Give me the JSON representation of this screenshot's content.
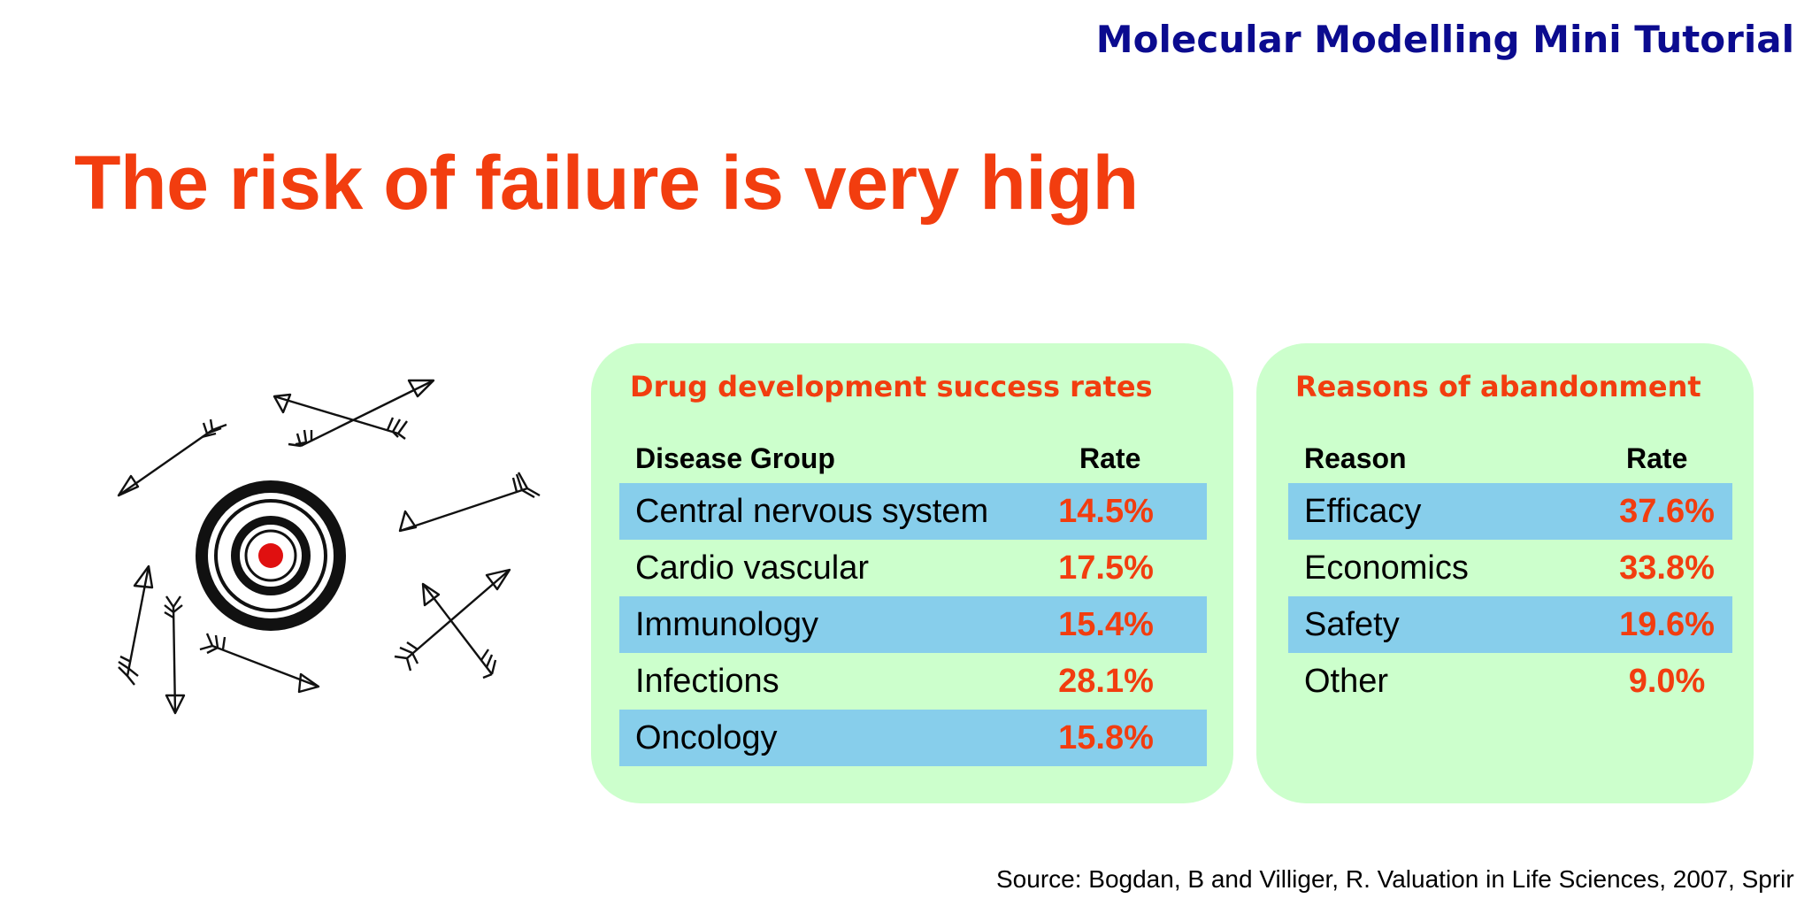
{
  "header": {
    "title": "Molecular Modelling Mini Tutorial"
  },
  "slide": {
    "title": "The risk of failure is very high"
  },
  "illustration": {
    "icon": "target-with-arrows-icon"
  },
  "success_table": {
    "heading": "Drug development success rates",
    "col_group": "Disease Group",
    "col_rate": "Rate",
    "rows": [
      {
        "name": "Central nervous system",
        "rate": "14.5%"
      },
      {
        "name": "Cardio vascular",
        "rate": "17.5%"
      },
      {
        "name": "Immunology",
        "rate": "15.4%"
      },
      {
        "name": "Infections",
        "rate": "28.1%"
      },
      {
        "name": "Oncology",
        "rate": "15.8%"
      }
    ]
  },
  "abandonment_table": {
    "heading": "Reasons of abandonment",
    "col_reason": "Reason",
    "col_rate": "Rate",
    "rows": [
      {
        "name": "Efficacy",
        "rate": "37.6%"
      },
      {
        "name": "Economics",
        "rate": "33.8%"
      },
      {
        "name": "Safety",
        "rate": "19.6%"
      },
      {
        "name": "Other",
        "rate": "9.0%"
      }
    ]
  },
  "source": "Source: Bogdan, B and Villiger, R. Valuation in Life Sciences, 2007, Sprir",
  "colors": {
    "title": "#f23d0f",
    "header": "#0b0b8f",
    "panel": "#ccffcc",
    "row_shade": "#87ceeb",
    "rate": "#f23d0f"
  }
}
